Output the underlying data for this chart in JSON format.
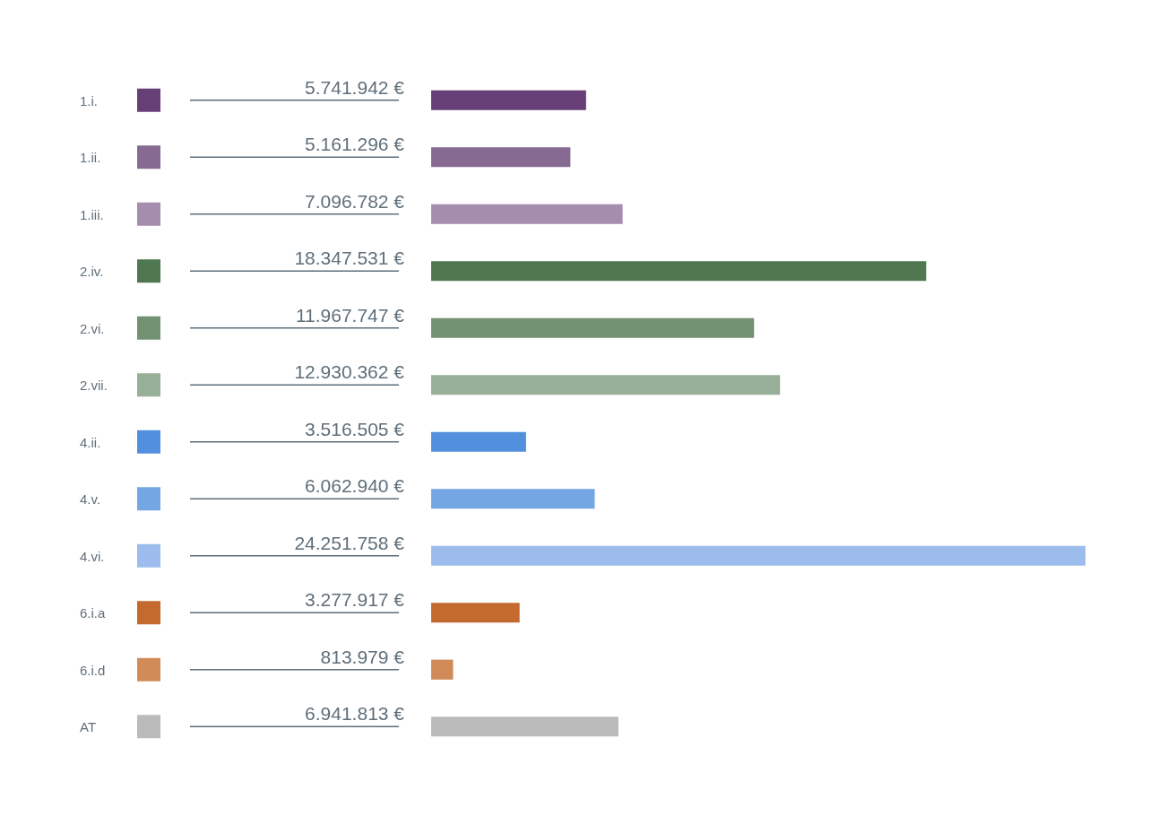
{
  "chart_data": {
    "type": "bar",
    "orientation": "horizontal",
    "categories": [
      "1.i.",
      "1.ii.",
      "1.iii.",
      "2.iv.",
      "2.vi.",
      "2.vii.",
      "4.ii.",
      "4.v.",
      "4.vi.",
      "6.i.a",
      "6.i.d",
      "AT"
    ],
    "values": [
      5741942,
      5161296,
      7096782,
      18347531,
      11967747,
      12930362,
      3516505,
      6062940,
      24251758,
      3277917,
      813979,
      6941813
    ],
    "value_labels": [
      "5.741.942 €",
      "5.161.296 €",
      "7.096.782 €",
      "18.347.531 €",
      "11.967.747 €",
      "12.930.362 €",
      "3.516.505 €",
      "6.062.940 €",
      "24.251.758 €",
      "3.277.917 €",
      "813.979 €",
      "6.941.813  €"
    ],
    "colors": [
      "#673f77",
      "#866a92",
      "#a58dae",
      "#507850",
      "#739273",
      "#98b098",
      "#5290dd",
      "#75a6e4",
      "#9bbcec",
      "#c46a2f",
      "#d08b58",
      "#bababa"
    ]
  }
}
